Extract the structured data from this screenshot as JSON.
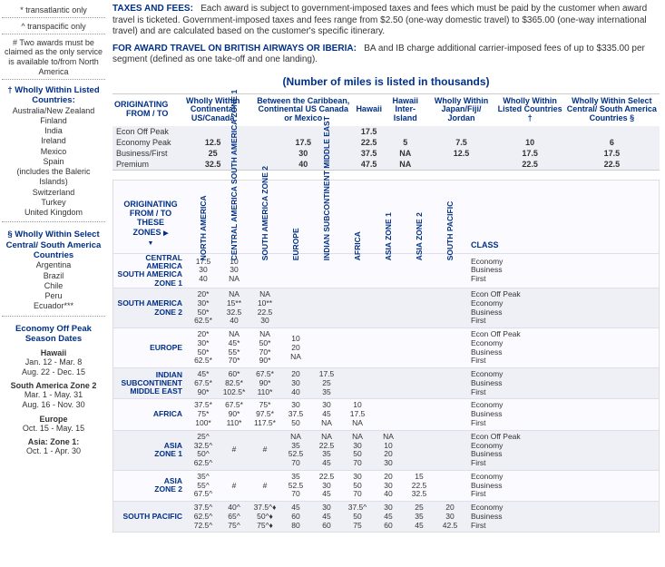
{
  "sidebar": {
    "footnotes": [
      "* transatlantic only",
      "^ transpacific only",
      "# Two awards must be claimed as the only service is available to/from North America"
    ],
    "listed_head": "† Wholly Within Listed Countries:",
    "listed_countries": [
      "Australia/New Zealand",
      "Finland",
      "India",
      "Ireland",
      "Mexico",
      "Spain",
      "(includes the Baleric Islands)",
      "Switzerland",
      "Turkey",
      "United Kingdom"
    ],
    "select_head": "§ Wholly Within Select Central/ South America Countries",
    "select_countries": [
      "Argentina",
      "Brazil",
      "Chile",
      "Peru",
      "Ecuador***"
    ],
    "season_head": "Economy Off Peak Season Dates",
    "seasons": [
      {
        "label": "Hawaii",
        "dates": [
          "Jan. 12 - Mar. 8",
          "Aug. 22 - Dec. 15"
        ]
      },
      {
        "label": "South America Zone 2",
        "dates": [
          "Mar. 1 - May. 31",
          "Aug. 16 - Nov. 30"
        ]
      },
      {
        "label": "Europe",
        "dates": [
          "Oct. 15 - May. 15"
        ]
      },
      {
        "label": "Asia: Zone 1:",
        "dates": [
          "Oct. 1 - Apr. 30"
        ]
      }
    ]
  },
  "fees": {
    "taxes_lead": "TAXES AND FEES:",
    "taxes_body": "Each award is subject to government-imposed taxes and fees which must be paid by the customer when award travel is ticketed.  Government-imposed taxes and fees range from $2.50  (one-way domestic travel) to $365.00 (one-way international travel) and are calculated based on the customer's specific itinerary.",
    "ba_lead": "FOR AWARD TRAVEL ON BRITISH AIRWAYS OR IBERIA:",
    "ba_body": "BA and IB charge additional carrier-imposed fees of up to $335.00 per segment (defined as one take-off and one landing)."
  },
  "thousands_title": "(Number of miles is listed in thousands)",
  "table1": {
    "originating": "ORIGINATING FROM / TO",
    "columns": [
      "Wholly Within Continental US/Canada",
      "Between the Caribbean, Continental US Canada or Mexico",
      "Hawaii",
      "Hawaii Inter-Island",
      "Wholly Within Japan/Fiji/ Jordan",
      "Wholly Within Listed Countries †",
      "Wholly Within Select Central/ South America Countries §"
    ],
    "rows": [
      {
        "label": "Econ Off Peak",
        "v": [
          "",
          "",
          "17.5",
          "",
          "",
          "",
          ""
        ]
      },
      {
        "label": "Economy Peak",
        "v": [
          "12.5",
          "17.5",
          "22.5",
          "5",
          "7.5",
          "10",
          "6"
        ]
      },
      {
        "label": "Business/First",
        "v": [
          "25",
          "30",
          "37.5",
          "NA",
          "12.5",
          "17.5",
          "17.5"
        ]
      },
      {
        "label": "Premium",
        "v": [
          "32.5",
          "40",
          "47.5",
          "NA",
          "",
          "22.5",
          "22.5"
        ]
      }
    ]
  },
  "table2": {
    "corner": "ORIGINATING FROM / TO THESE ZONES",
    "zone_headers": [
      "NORTH AMERICA",
      "CENTRAL AMERICA SOUTH AMERICA ZONE 1",
      "SOUTH AMERICA ZONE 2",
      "EUROPE",
      "INDIAN SUBCONTINENT MIDDLE EAST",
      "AFRICA",
      "ASIA ZONE 1",
      "ASIA ZONE 2",
      "SOUTH PACIFIC"
    ],
    "class_header": "CLASS",
    "regions": [
      {
        "label": "CENTRAL AMERICA SOUTH AMERICA ZONE 1",
        "alt": false,
        "cells": [
          "17.5<br>30<br>40",
          "10<br>30<br>NA",
          "",
          "",
          "",
          "",
          "",
          "",
          ""
        ],
        "class": "Economy<br>Business<br>First"
      },
      {
        "label": "SOUTH AMERICA ZONE 2",
        "alt": true,
        "cells": [
          "20*<br>30*<br>50*<br>62.5*",
          "NA<br>15**<br>32.5<br>40",
          "NA<br>10**<br>22.5<br>30",
          "",
          "",
          "",
          "",
          "",
          ""
        ],
        "class": "Econ Off Peak<br>Economy<br>Business<br>First"
      },
      {
        "label": "EUROPE",
        "alt": false,
        "cells": [
          "20*<br>30*<br>50*<br>62.5*",
          "NA<br>45*<br>55*<br>70*",
          "NA<br>50*<br>70*<br>90*",
          "10<br>20<br>NA",
          "",
          "",
          "",
          "",
          ""
        ],
        "class": "Econ Off Peak<br>Economy<br>Business<br>First"
      },
      {
        "label": "INDIAN SUBCONTINENT MIDDLE EAST",
        "alt": true,
        "cells": [
          "45*<br>67.5*<br>90*",
          "60*<br>82.5*<br>102.5*",
          "67.5*<br>90*<br>110*",
          "20<br>30<br>40",
          "17.5<br>25<br>35",
          "",
          "",
          "",
          ""
        ],
        "class": "Economy<br>Business<br>First"
      },
      {
        "label": "AFRICA",
        "alt": false,
        "cells": [
          "37.5*<br>75*<br>100*",
          "67.5*<br>90*<br>110*",
          "75*<br>97.5*<br>117.5*",
          "30<br>37.5<br>50",
          "30<br>45<br>NA",
          "10<br>17.5<br>NA",
          "",
          "",
          ""
        ],
        "class": "Economy<br>Business<br>First"
      },
      {
        "label": "ASIA ZONE 1",
        "alt": true,
        "cells": [
          "25^<br>32.5^<br>50^<br>62.5^",
          "#",
          "#",
          "NA<br>35<br>52.5<br>70",
          "NA<br>22.5<br>35<br>45",
          "NA<br>30<br>50<br>70",
          "NA<br>10<br>20<br>30",
          "",
          ""
        ],
        "class": "Econ Off Peak<br>Economy<br>Business<br>First"
      },
      {
        "label": "ASIA ZONE 2",
        "alt": false,
        "cells": [
          "35^<br>55^<br>67.5^",
          "#",
          "#",
          "35<br>52.5<br>70",
          "22.5<br>30<br>45",
          "30<br>50<br>70",
          "20<br>30<br>40",
          "15<br>22.5<br>32.5",
          ""
        ],
        "class": "Economy<br>Business<br>First"
      },
      {
        "label": "SOUTH PACIFIC",
        "alt": true,
        "cells": [
          "37.5^<br>62.5^<br>72.5^",
          "40^<br>65^<br>75^",
          "37.5^♦<br>50^♦<br>75^♦",
          "45<br>60<br>80",
          "30<br>45<br>60",
          "37.5^<br>50<br>75",
          "30<br>45<br>60",
          "25<br>35<br>45",
          "20<br>30<br>42.5"
        ],
        "class": "Economy<br>Business<br>First"
      }
    ]
  }
}
